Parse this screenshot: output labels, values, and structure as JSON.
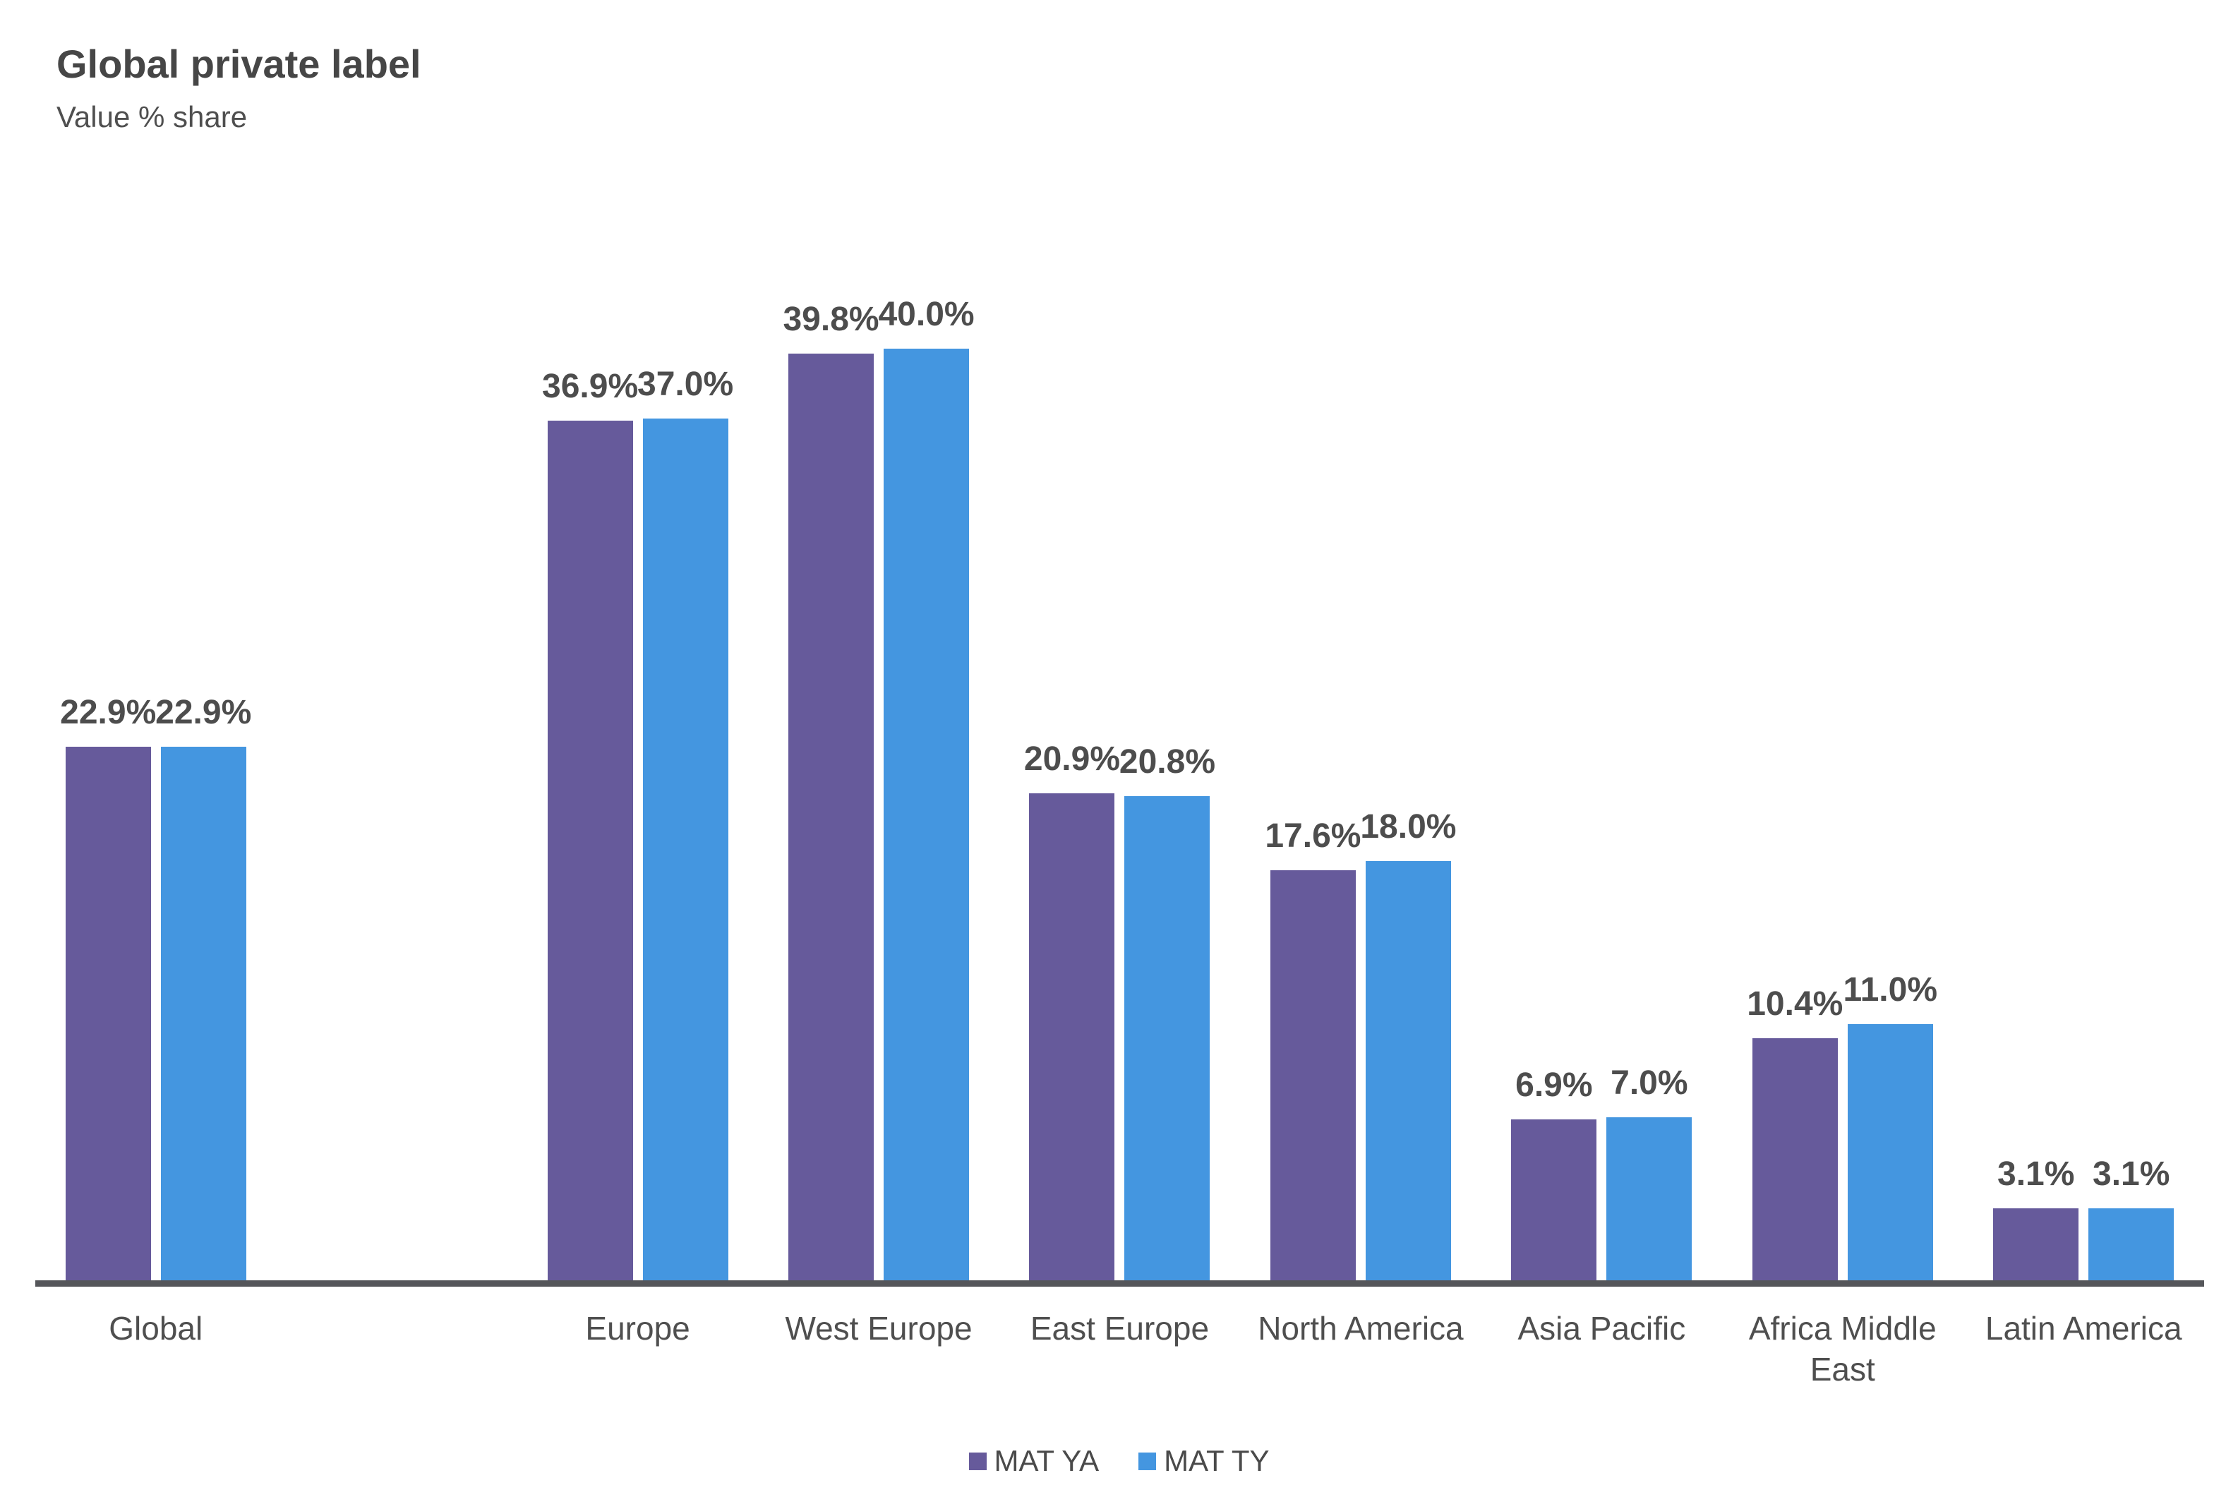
{
  "header": {
    "title": "Global private label",
    "subtitle": "Value % share"
  },
  "chart_data": {
    "type": "bar",
    "title": "Global private label",
    "subtitle": "Value % share",
    "categories": [
      "Global",
      "Europe",
      "West Europe",
      "East Europe",
      "North America",
      "Asia Pacific",
      "Africa Middle East",
      "Latin America"
    ],
    "series": [
      {
        "name": "MAT YA",
        "color": "#665A9B",
        "values": [
          22.9,
          36.9,
          39.8,
          20.9,
          17.6,
          6.9,
          10.4,
          3.1
        ]
      },
      {
        "name": "MAT TY",
        "color": "#4496E0",
        "values": [
          22.9,
          37.0,
          40.0,
          20.8,
          18.0,
          7.0,
          11.0,
          3.1
        ]
      }
    ],
    "value_labels": [
      [
        "22.9%",
        "36.9%",
        "39.8%",
        "20.9%",
        "17.6%",
        "6.9%",
        "10.4%",
        "3.1%"
      ],
      [
        "22.9%",
        "37.0%",
        "40.0%",
        "20.8%",
        "18.0%",
        "7.0%",
        "11.0%",
        "3.1%"
      ]
    ],
    "xlabel": "",
    "ylabel": "",
    "ylim": [
      0,
      40
    ],
    "grid": false,
    "y_axis_visible": false,
    "legend_position": "bottom",
    "layout": {
      "empty_slot_after_category_index": 0,
      "total_slots": 9
    }
  },
  "legend": {
    "items": [
      {
        "label": "MAT YA",
        "color": "#665A9B"
      },
      {
        "label": "MAT TY",
        "color": "#4496E0"
      }
    ]
  },
  "colors": {
    "mat_ya": "#665A9B",
    "mat_ty": "#4496E0",
    "title_text": "#464646",
    "value_label_text": "#4d4d4d",
    "category_text": "#4f4f4f",
    "axis_line": "#55565a",
    "background": "#ffffff"
  }
}
